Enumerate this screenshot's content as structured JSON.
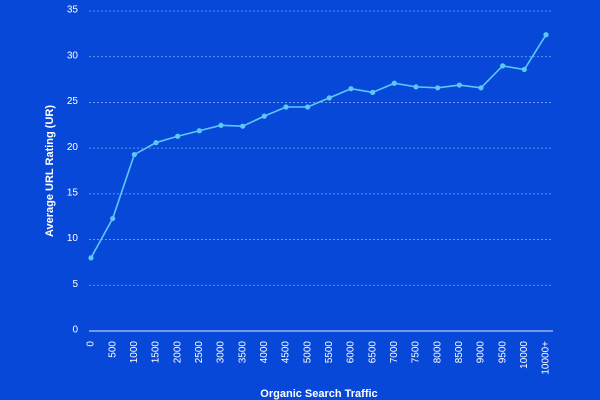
{
  "chart_data": {
    "type": "line",
    "x_label": "Organic Search Traffic",
    "y_label": "Average URL Rating (UR)",
    "categories": [
      "0",
      "500",
      "1000",
      "1500",
      "2000",
      "2500",
      "3000",
      "3500",
      "4000",
      "4500",
      "5000",
      "5500",
      "6000",
      "6500",
      "7000",
      "7500",
      "8000",
      "8500",
      "9000",
      "9500",
      "10000",
      "10000+"
    ],
    "values": [
      8.0,
      12.3,
      19.3,
      20.6,
      21.3,
      21.9,
      22.5,
      22.4,
      23.5,
      24.5,
      24.5,
      25.5,
      26.5,
      26.1,
      27.1,
      26.7,
      26.6,
      26.9,
      26.6,
      29.0,
      28.6,
      32.4
    ],
    "color": "#5cc8f7",
    "ylim": [
      0,
      35
    ],
    "yticks": [
      0,
      5,
      10,
      15,
      20,
      25,
      30,
      35
    ],
    "grid": true
  }
}
